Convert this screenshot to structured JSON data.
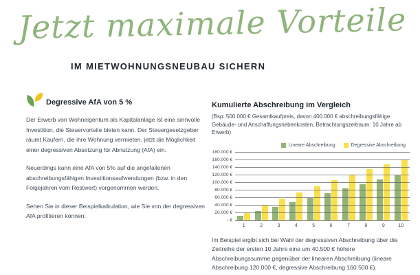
{
  "hero": {
    "script_title": "Jetzt maximale Vorteile",
    "subtitle": "IM MIETWOHNUNGSNEUBAU SICHERN"
  },
  "left": {
    "heading": "Degressive AfA von 5 %",
    "paragraphs": [
      "Der Erwerb von Wohneigentum als Kapitalanlage ist eine sinnvolle Investition, die Steuervorteile bieten kann. Der Steuergesetzgeber räumt Käufern, die ihre Wohnung vermieten, jetzt die Möglichkeit einer degressiven Absetzung für Abnutzung (AfA) ein.",
      "Neuerdings kann eine AfA von 5% auf die angefallenen abschreibungsfähigen Investitionsaufwendungen (bzw. in den Folgejahren vom Restwert) vorgenommen werden.",
      "Sehen Sie in dieser Beispielkalkulation, wie Sie von der degressiven AfA profitieren können:"
    ]
  },
  "right": {
    "title": "Kumulierte Abschreibung im Vergleich",
    "subtitle": "(Bsp: 500.000 € Gesamtkaufpreis, davon 400.000 € abschreibungsfähige Gebäude- und Anschaffungsnebenkosten, Betrachtungszeitraum: 10 Jahre ab Erwerb)",
    "note": "Im Beispiel ergibt sich bei Wahl der degressiven Abschreibung über die Zeitreihe der ersten 10 Jahre eine um 40.500 € höhere Abschreibungssumme gegenüber der linearen Abschreibung (lineare Abschreibung 120.000 €, degressive Abschreibung 160.500 €)."
  },
  "chart_data": {
    "type": "bar",
    "title": "Kumulierte Abschreibung im Vergleich",
    "categories": [
      "1",
      "2",
      "3",
      "4",
      "5",
      "6",
      "7",
      "8",
      "9",
      "10"
    ],
    "series": [
      {
        "name": "Lineare Abschreibung",
        "color": "#94b377",
        "values": [
          12000,
          24000,
          36000,
          48000,
          60000,
          72000,
          84000,
          96000,
          108000,
          120000
        ]
      },
      {
        "name": "Degressive Abschreibung",
        "color": "#f9df4c",
        "values": [
          20000,
          39000,
          57050,
          74198,
          90488,
          105963,
          120665,
          134632,
          147900,
          160505
        ]
      }
    ],
    "xlabel": "",
    "ylabel": "",
    "ylim": [
      0,
      180000
    ],
    "ytick_step": 20000,
    "ytick_labels": [
      "- €",
      "20.000 €",
      "40.000 €",
      "60.000 €",
      "80.000 €",
      "100.000 €",
      "120.000 €",
      "140.000 €",
      "160.000 €",
      "180.000 €"
    ],
    "grid": true,
    "legend_position": "top-right"
  },
  "icons": {
    "leaf": "leaf-icon"
  },
  "colors": {
    "script_green": "#90b47c",
    "heading_dark": "#1f262e",
    "body_text": "#3f4a54",
    "bar_green": "#94b377",
    "bar_yellow": "#f9df4c",
    "leaf_green": "#6ca356",
    "leaf_yellow": "#eec41b",
    "gridline": "#5e5e5e"
  }
}
